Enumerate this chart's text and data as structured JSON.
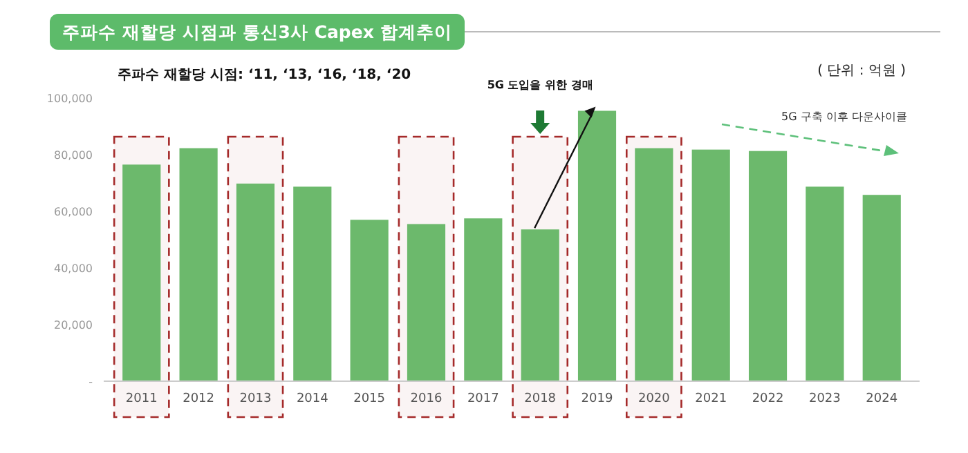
{
  "chart_data": {
    "type": "bar",
    "title": "주파수 재할당 시점과 통신3사 Capex 합계추이",
    "subtitle": "주파수 재할당 시점: ‘11, ‘13, ‘16, ‘18, ‘20",
    "categories": [
      "2011",
      "2012",
      "2013",
      "2014",
      "2015",
      "2016",
      "2017",
      "2018",
      "2019",
      "2020",
      "2021",
      "2022",
      "2023",
      "2024"
    ],
    "values": [
      76500,
      82300,
      69800,
      68700,
      57000,
      55500,
      57500,
      53600,
      95500,
      82300,
      81800,
      81300,
      68700,
      65800
    ],
    "color": "#6cb96c",
    "ylim": [
      0,
      100000
    ],
    "yticks": [
      {
        "value": 0,
        "label": "-"
      },
      {
        "value": 20000,
        "label": "20,000"
      },
      {
        "value": 40000,
        "label": "40,000"
      },
      {
        "value": 60000,
        "label": "60,000"
      },
      {
        "value": 80000,
        "label": "80,000"
      },
      {
        "value": 100000,
        "label": "100,000"
      }
    ],
    "grid": false,
    "bands": [
      {
        "axis": "x",
        "from": "2011",
        "to": "2011",
        "color": "#a52a2a"
      },
      {
        "axis": "x",
        "from": "2013",
        "to": "2013",
        "color": "#a52a2a"
      },
      {
        "axis": "x",
        "from": "2016",
        "to": "2016",
        "color": "#a52a2a"
      },
      {
        "axis": "x",
        "from": "2018",
        "to": "2018",
        "color": "#a52a2a"
      },
      {
        "axis": "x",
        "from": "2020",
        "to": "2020",
        "color": "#a52a2a"
      }
    ],
    "annotations": [
      "( 단위 : 억원 )",
      "5G 도입을 위한 경매",
      "5G 구축 이후 다운사이클"
    ]
  }
}
